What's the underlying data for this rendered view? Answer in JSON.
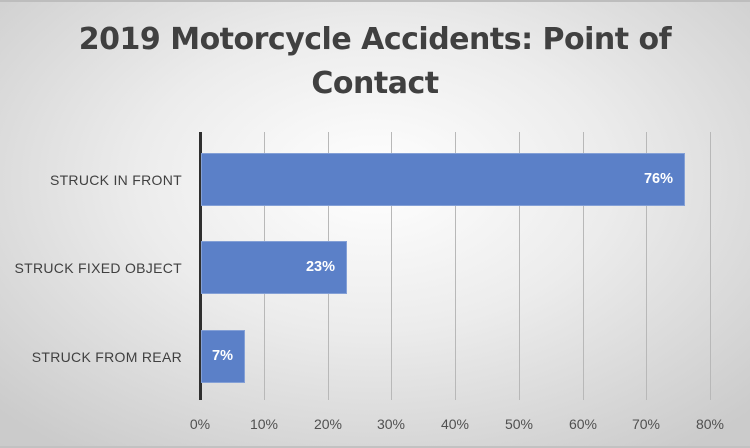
{
  "chart_data": {
    "type": "bar",
    "orientation": "horizontal",
    "title": "2019 Motorcycle Accidents: Point of Contact",
    "title_lines": [
      "2019 Motorcycle Accidents: Point of",
      "Contact"
    ],
    "categories": [
      "STRUCK IN FRONT",
      "STRUCK FIXED OBJECT",
      "STRUCK FROM REAR"
    ],
    "values": [
      76,
      23,
      7
    ],
    "data_labels": [
      "76%",
      "23%",
      "7%"
    ],
    "xlabel": "",
    "ylabel": "",
    "xlim": [
      0,
      80
    ],
    "x_ticks": [
      "0%",
      "10%",
      "20%",
      "30%",
      "40%",
      "50%",
      "60%",
      "70%",
      "80%"
    ],
    "grid": "vertical",
    "legend": "none",
    "bar_color": "#5b80c8"
  }
}
